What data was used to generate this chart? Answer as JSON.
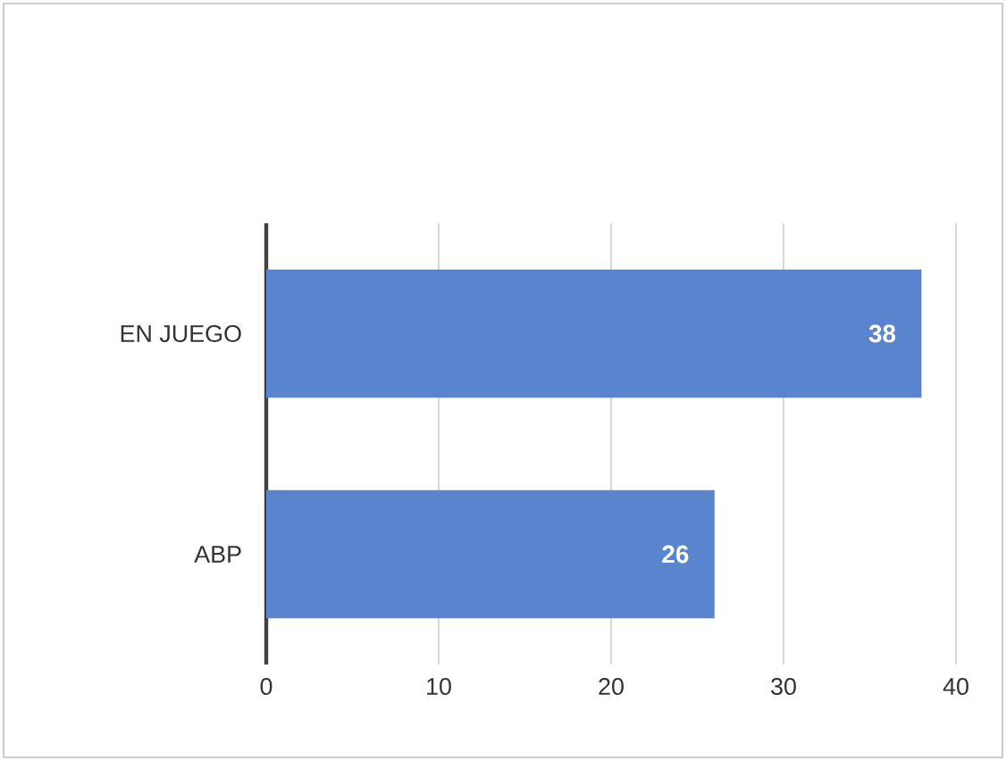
{
  "chart_data": {
    "type": "bar",
    "orientation": "horizontal",
    "categories": [
      "EN JUEGO",
      "ABP"
    ],
    "values": [
      38,
      26
    ],
    "color": "#5b84cf",
    "xlim": [
      0,
      40
    ],
    "xticks": [
      0,
      10,
      20,
      30,
      40
    ],
    "grid": "x",
    "data_labels": true
  }
}
